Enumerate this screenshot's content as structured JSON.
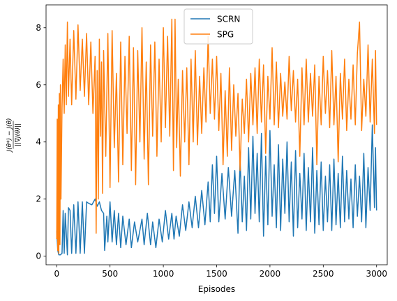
{
  "chart_data": {
    "type": "line",
    "xlabel": "Episodes",
    "ylabel": "J(θ*) − J(θ) / ||∇J(θ)||",
    "xlim": [
      -100,
      3100
    ],
    "ylim": [
      -0.3,
      8.8
    ],
    "xticks": [
      0,
      500,
      1000,
      1500,
      2000,
      2500,
      3000
    ],
    "yticks": [
      0,
      2,
      4,
      6,
      8
    ],
    "legend_position": "top-center",
    "series": [
      {
        "name": "SCRN",
        "color": "#1f77b4",
        "points": [
          [
            0,
            0.9
          ],
          [
            10,
            0.2
          ],
          [
            20,
            0.05
          ],
          [
            35,
            0.05
          ],
          [
            50,
            0.1
          ],
          [
            60,
            1.6
          ],
          [
            70,
            0.1
          ],
          [
            80,
            1.5
          ],
          [
            100,
            0.05
          ],
          [
            110,
            1.7
          ],
          [
            125,
            1.6
          ],
          [
            140,
            0.1
          ],
          [
            160,
            1.8
          ],
          [
            180,
            0.1
          ],
          [
            200,
            1.9
          ],
          [
            220,
            0.1
          ],
          [
            240,
            1.9
          ],
          [
            260,
            0.1
          ],
          [
            280,
            1.9
          ],
          [
            300,
            1.85
          ],
          [
            330,
            1.8
          ],
          [
            360,
            2.0
          ],
          [
            380,
            1.75
          ],
          [
            400,
            1.9
          ],
          [
            420,
            1.6
          ],
          [
            440,
            1.5
          ],
          [
            450,
            0.2
          ],
          [
            470,
            1.4
          ],
          [
            480,
            0.5
          ],
          [
            500,
            1.9
          ],
          [
            520,
            0.5
          ],
          [
            540,
            1.6
          ],
          [
            560,
            0.4
          ],
          [
            580,
            1.5
          ],
          [
            600,
            0.3
          ],
          [
            620,
            1.4
          ],
          [
            650,
            0.4
          ],
          [
            680,
            1.3
          ],
          [
            700,
            0.3
          ],
          [
            730,
            1.2
          ],
          [
            760,
            0.5
          ],
          [
            800,
            1.3
          ],
          [
            820,
            0.4
          ],
          [
            850,
            1.5
          ],
          [
            880,
            0.4
          ],
          [
            900,
            1.2
          ],
          [
            930,
            0.3
          ],
          [
            960,
            1.3
          ],
          [
            990,
            0.5
          ],
          [
            1020,
            1.6
          ],
          [
            1050,
            0.6
          ],
          [
            1080,
            1.5
          ],
          [
            1100,
            0.6
          ],
          [
            1120,
            1.4
          ],
          [
            1150,
            0.7
          ],
          [
            1180,
            1.8
          ],
          [
            1210,
            0.9
          ],
          [
            1240,
            1.9
          ],
          [
            1270,
            1.0
          ],
          [
            1300,
            2.1
          ],
          [
            1330,
            1.0
          ],
          [
            1360,
            2.3
          ],
          [
            1390,
            1.1
          ],
          [
            1420,
            2.6
          ],
          [
            1440,
            1.2
          ],
          [
            1460,
            3.2
          ],
          [
            1480,
            1.5
          ],
          [
            1500,
            3.5
          ],
          [
            1520,
            1.2
          ],
          [
            1550,
            2.9
          ],
          [
            1580,
            1.3
          ],
          [
            1610,
            3.1
          ],
          [
            1640,
            1.4
          ],
          [
            1670,
            3.0
          ],
          [
            1700,
            0.8
          ],
          [
            1720,
            3.4
          ],
          [
            1740,
            1.2
          ],
          [
            1760,
            2.8
          ],
          [
            1780,
            0.9
          ],
          [
            1800,
            3.8
          ],
          [
            1820,
            1.3
          ],
          [
            1840,
            4.2
          ],
          [
            1860,
            1.5
          ],
          [
            1880,
            3.6
          ],
          [
            1900,
            1.2
          ],
          [
            1920,
            4.3
          ],
          [
            1940,
            0.7
          ],
          [
            1960,
            3.5
          ],
          [
            1980,
            1.1
          ],
          [
            2000,
            4.4
          ],
          [
            2020,
            1.4
          ],
          [
            2040,
            3.2
          ],
          [
            2060,
            1.0
          ],
          [
            2080,
            3.9
          ],
          [
            2100,
            0.9
          ],
          [
            2120,
            3.4
          ],
          [
            2140,
            1.5
          ],
          [
            2160,
            4.0
          ],
          [
            2180,
            1.2
          ],
          [
            2200,
            3.3
          ],
          [
            2220,
            0.7
          ],
          [
            2240,
            3.7
          ],
          [
            2260,
            1.0
          ],
          [
            2280,
            2.9
          ],
          [
            2300,
            1.3
          ],
          [
            2320,
            3.6
          ],
          [
            2340,
            0.9
          ],
          [
            2360,
            3.1
          ],
          [
            2380,
            1.2
          ],
          [
            2400,
            3.8
          ],
          [
            2420,
            0.8
          ],
          [
            2440,
            3.0
          ],
          [
            2460,
            1.1
          ],
          [
            2480,
            3.3
          ],
          [
            2500,
            0.9
          ],
          [
            2520,
            2.8
          ],
          [
            2540,
            1.2
          ],
          [
            2560,
            3.2
          ],
          [
            2580,
            0.9
          ],
          [
            2600,
            3.4
          ],
          [
            2620,
            1.1
          ],
          [
            2640,
            2.9
          ],
          [
            2660,
            1.0
          ],
          [
            2680,
            3.5
          ],
          [
            2700,
            1.2
          ],
          [
            2720,
            3.0
          ],
          [
            2740,
            1.3
          ],
          [
            2760,
            2.7
          ],
          [
            2780,
            1.0
          ],
          [
            2800,
            3.2
          ],
          [
            2820,
            1.4
          ],
          [
            2840,
            2.8
          ],
          [
            2860,
            1.2
          ],
          [
            2880,
            3.6
          ],
          [
            2900,
            1.0
          ],
          [
            2920,
            3.1
          ],
          [
            2940,
            1.6
          ],
          [
            2960,
            4.6
          ],
          [
            2980,
            1.7
          ],
          [
            2990,
            3.8
          ],
          [
            3000,
            1.6
          ]
        ]
      },
      {
        "name": "SPG",
        "color": "#ff7f0e",
        "points": [
          [
            0,
            0.6
          ],
          [
            5,
            4.8
          ],
          [
            10,
            0.2
          ],
          [
            15,
            5.3
          ],
          [
            20,
            0.1
          ],
          [
            25,
            5.7
          ],
          [
            30,
            0.4
          ],
          [
            35,
            6.0
          ],
          [
            40,
            2.0
          ],
          [
            50,
            5.2
          ],
          [
            60,
            6.9
          ],
          [
            70,
            5.0
          ],
          [
            80,
            7.4
          ],
          [
            90,
            5.3
          ],
          [
            100,
            8.2
          ],
          [
            110,
            5.6
          ],
          [
            125,
            7.6
          ],
          [
            140,
            5.3
          ],
          [
            160,
            7.9
          ],
          [
            180,
            5.5
          ],
          [
            200,
            8.1
          ],
          [
            220,
            5.8
          ],
          [
            240,
            7.6
          ],
          [
            260,
            5.6
          ],
          [
            280,
            7.8
          ],
          [
            300,
            5.3
          ],
          [
            320,
            7.5
          ],
          [
            340,
            5.0
          ],
          [
            360,
            7.0
          ],
          [
            370,
            0.8
          ],
          [
            380,
            6.5
          ],
          [
            390,
            2.0
          ],
          [
            400,
            7.6
          ],
          [
            410,
            4.2
          ],
          [
            420,
            6.8
          ],
          [
            430,
            2.2
          ],
          [
            440,
            7.2
          ],
          [
            460,
            3.5
          ],
          [
            480,
            7.8
          ],
          [
            500,
            2.4
          ],
          [
            520,
            7.9
          ],
          [
            540,
            3.8
          ],
          [
            560,
            6.4
          ],
          [
            580,
            2.6
          ],
          [
            600,
            7.5
          ],
          [
            620,
            3.2
          ],
          [
            640,
            7.0
          ],
          [
            660,
            4.3
          ],
          [
            680,
            7.7
          ],
          [
            700,
            3.0
          ],
          [
            720,
            7.3
          ],
          [
            740,
            2.5
          ],
          [
            760,
            7.2
          ],
          [
            780,
            4.0
          ],
          [
            800,
            8.0
          ],
          [
            820,
            3.4
          ],
          [
            840,
            6.8
          ],
          [
            860,
            2.5
          ],
          [
            880,
            7.4
          ],
          [
            900,
            4.2
          ],
          [
            920,
            7.5
          ],
          [
            940,
            3.5
          ],
          [
            960,
            6.9
          ],
          [
            980,
            4.0
          ],
          [
            1000,
            8.0
          ],
          [
            1020,
            4.5
          ],
          [
            1040,
            7.7
          ],
          [
            1060,
            4.2
          ],
          [
            1080,
            8.3
          ],
          [
            1095,
            3.0
          ],
          [
            1110,
            8.3
          ],
          [
            1125,
            3.8
          ],
          [
            1140,
            6.2
          ],
          [
            1160,
            2.8
          ],
          [
            1180,
            6.5
          ],
          [
            1200,
            4.0
          ],
          [
            1220,
            6.6
          ],
          [
            1240,
            3.2
          ],
          [
            1260,
            6.9
          ],
          [
            1280,
            4.0
          ],
          [
            1300,
            7.2
          ],
          [
            1320,
            3.9
          ],
          [
            1340,
            6.3
          ],
          [
            1360,
            4.3
          ],
          [
            1380,
            6.6
          ],
          [
            1400,
            4.7
          ],
          [
            1420,
            7.7
          ],
          [
            1440,
            5.0
          ],
          [
            1460,
            6.9
          ],
          [
            1480,
            4.8
          ],
          [
            1500,
            7.0
          ],
          [
            1520,
            4.4
          ],
          [
            1540,
            6.4
          ],
          [
            1560,
            3.2
          ],
          [
            1580,
            5.8
          ],
          [
            1600,
            3.5
          ],
          [
            1620,
            6.6
          ],
          [
            1640,
            3.7
          ],
          [
            1660,
            6.0
          ],
          [
            1680,
            4.2
          ],
          [
            1700,
            5.7
          ],
          [
            1720,
            3.0
          ],
          [
            1740,
            5.5
          ],
          [
            1760,
            4.3
          ],
          [
            1780,
            6.2
          ],
          [
            1800,
            4.0
          ],
          [
            1820,
            6.4
          ],
          [
            1840,
            4.6
          ],
          [
            1860,
            6.6
          ],
          [
            1880,
            4.3
          ],
          [
            1900,
            6.9
          ],
          [
            1920,
            4.7
          ],
          [
            1940,
            6.7
          ],
          [
            1960,
            3.6
          ],
          [
            1980,
            6.3
          ],
          [
            2000,
            4.8
          ],
          [
            2020,
            7.3
          ],
          [
            2040,
            4.6
          ],
          [
            2060,
            6.8
          ],
          [
            2080,
            4.5
          ],
          [
            2100,
            6.4
          ],
          [
            2120,
            4.9
          ],
          [
            2140,
            6.1
          ],
          [
            2160,
            4.8
          ],
          [
            2180,
            7.0
          ],
          [
            2200,
            5.1
          ],
          [
            2220,
            6.5
          ],
          [
            2240,
            4.7
          ],
          [
            2260,
            6.2
          ],
          [
            2280,
            3.5
          ],
          [
            2300,
            6.6
          ],
          [
            2320,
            4.6
          ],
          [
            2340,
            6.9
          ],
          [
            2360,
            4.7
          ],
          [
            2380,
            6.4
          ],
          [
            2400,
            4.9
          ],
          [
            2420,
            6.7
          ],
          [
            2440,
            3.2
          ],
          [
            2460,
            6.3
          ],
          [
            2480,
            4.6
          ],
          [
            2500,
            7.0
          ],
          [
            2520,
            5.0
          ],
          [
            2540,
            6.5
          ],
          [
            2560,
            4.5
          ],
          [
            2580,
            7.2
          ],
          [
            2600,
            4.6
          ],
          [
            2620,
            6.3
          ],
          [
            2640,
            3.3
          ],
          [
            2660,
            6.4
          ],
          [
            2680,
            4.8
          ],
          [
            2700,
            6.9
          ],
          [
            2720,
            4.4
          ],
          [
            2740,
            6.2
          ],
          [
            2760,
            4.8
          ],
          [
            2780,
            6.7
          ],
          [
            2800,
            4.6
          ],
          [
            2820,
            7.1
          ],
          [
            2840,
            8.2
          ],
          [
            2860,
            4.4
          ],
          [
            2880,
            6.2
          ],
          [
            2900,
            4.9
          ],
          [
            2920,
            7.4
          ],
          [
            2940,
            4.7
          ],
          [
            2960,
            6.9
          ],
          [
            2980,
            4.3
          ],
          [
            2990,
            7.2
          ],
          [
            3000,
            4.6
          ]
        ]
      }
    ]
  }
}
